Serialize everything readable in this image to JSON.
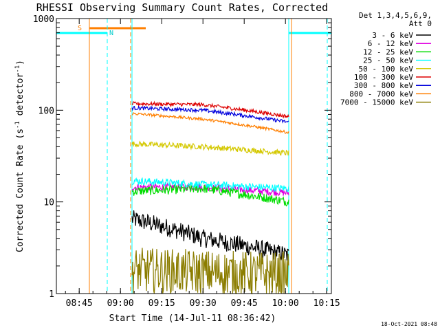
{
  "chart_data": {
    "type": "line",
    "title": "RHESSI Observing Summary Count Rates, Corrected",
    "xlabel": "Start Time (14-Jul-11 08:36:42)",
    "ylabel_main": "Corrected Count Rate (s",
    "ylabel_sup1": "-1",
    "ylabel_mid": " detector",
    "ylabel_sup2": "-1",
    "ylabel_end": ")",
    "yscale": "log",
    "ylim": [
      1,
      1000
    ],
    "xlim_minutes": [
      0,
      100
    ],
    "xticks": [
      {
        "label": "08:45",
        "minute": 8.3
      },
      {
        "label": "09:00",
        "minute": 23.3
      },
      {
        "label": "09:15",
        "minute": 38.3
      },
      {
        "label": "09:30",
        "minute": 53.3
      },
      {
        "label": "09:45",
        "minute": 68.3
      },
      {
        "label": "10:00",
        "minute": 83.3
      },
      {
        "label": "10:15",
        "minute": 98.3
      }
    ],
    "yticks": [
      {
        "label": "1",
        "value": 1
      },
      {
        "label": "10",
        "value": 10
      },
      {
        "label": "100",
        "value": 100
      },
      {
        "label": "1000",
        "value": 1000
      }
    ],
    "legend_header": [
      "Det 1,3,4,5,6,9,",
      "Att 0"
    ],
    "data_start_min": 27.5,
    "data_end_min": 84.5,
    "series": [
      {
        "name": "3 - 6 keV",
        "color": "#000000",
        "start": 6.5,
        "mid": 4.0,
        "end": 2.6,
        "noise": 0.1
      },
      {
        "name": "6 - 12 keV",
        "color": "#e000e0",
        "start": 14.5,
        "mid": 14.5,
        "end": 12.5,
        "noise": 0.04
      },
      {
        "name": "12 - 25 keV",
        "color": "#00dd00",
        "start": 13.0,
        "mid": 14.0,
        "end": 10.0,
        "noise": 0.05
      },
      {
        "name": "25 - 50 keV",
        "color": "#00ffff",
        "start": 17.0,
        "mid": 15.5,
        "end": 14.0,
        "noise": 0.04
      },
      {
        "name": "50 - 100 keV",
        "color": "#d4c800",
        "start": 43.0,
        "mid": 40.0,
        "end": 34.0,
        "noise": 0.03
      },
      {
        "name": "100 - 300 keV",
        "color": "#dd0000",
        "start": 118.0,
        "mid": 115.0,
        "end": 85.0,
        "noise": 0.02
      },
      {
        "name": "300 - 800 keV",
        "color": "#0000dd",
        "start": 106.0,
        "mid": 100.0,
        "end": 74.0,
        "noise": 0.02
      },
      {
        "name": "800 - 7000 keV",
        "color": "#ff7f00",
        "start": 92.0,
        "mid": 80.0,
        "end": 57.0,
        "noise": 0.015
      },
      {
        "name": "7000 - 15000 keV",
        "color": "#8b7d00",
        "start": 1.8,
        "mid": 1.7,
        "end": 1.6,
        "noise": 0.25
      }
    ],
    "annotations": {
      "saa_label": "S",
      "night_label": "N",
      "saa_color": "#ff7f00",
      "night_color": "#00ffff"
    },
    "saa_intervals": [
      [
        12.0,
        32.5
      ]
    ],
    "night_intervals": [
      [
        -5,
        18.5
      ],
      [
        84.5,
        110
      ]
    ],
    "solid_vlines": [
      {
        "minute": 12.0,
        "color": "#ff7f00"
      },
      {
        "minute": 27.5,
        "color": "#00ffff"
      },
      {
        "minute": 84.5,
        "color": "#00ffff"
      },
      {
        "minute": 85.5,
        "color": "#ff7f00"
      }
    ],
    "dashed_vlines": [
      {
        "minute": 18.5,
        "color": "#00ffff"
      },
      {
        "minute": 27.0,
        "color": "#ff7f00"
      },
      {
        "minute": 98.5,
        "color": "#00ffff"
      }
    ],
    "footer_date": "18-Oct-2021 08:48"
  }
}
